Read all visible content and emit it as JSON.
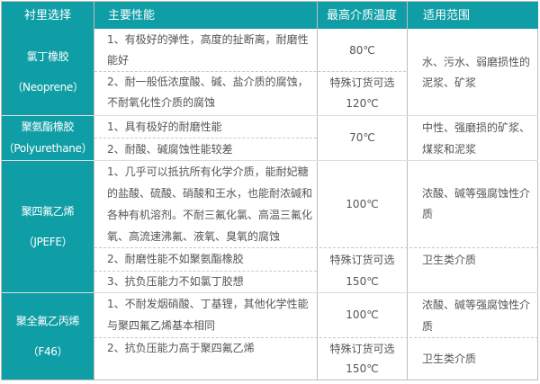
{
  "header": [
    "衬里选择",
    "主要性能",
    "最高介质温度",
    "适用范围"
  ],
  "colors": {
    "accent": "#109ea6",
    "border": "#bdbdbd",
    "text": "#555555"
  },
  "rows": [
    {
      "material": [
        "氯丁橡胶",
        "（Neoprene）"
      ],
      "properties": [
        "1、有极好的弹性，高度的扯断离，耐磨性能好",
        "2、耐一般低浓度酸、碱、盐介质的腐蚀，不耐氧化性介质的腐蚀"
      ],
      "temps": [
        "80℃",
        "特殊订货可选",
        "120℃"
      ],
      "usage": [
        "水、污水、弱磨损性的泥浆、矿浆"
      ]
    },
    {
      "material": [
        "聚氨酯橡胶",
        "（Polyurethane）"
      ],
      "properties": [
        "1、具有极好的耐磨性能",
        "2、耐酸、碱腐蚀性能较差"
      ],
      "temps": [
        "70℃"
      ],
      "usage": [
        "中性、强磨损的矿浆、煤浆和泥浆"
      ]
    },
    {
      "material": [
        "聚四氟乙烯",
        "（JPEFE）"
      ],
      "properties": [
        "1、几乎可以抵抗所有化学介质，能耐妃糖的盐酸、硫酸、硝酸和王水，也能耐浓碱和各种有机溶剂。不耐三氟化氯、高温三氟化氧、高流速沸氟、液氧、臭氧的腐蚀",
        "2、耐磨性能不如聚氨酯橡胶",
        "3、抗负压能力不如氯丁胶想"
      ],
      "temps": [
        "100℃",
        "特殊订货可选",
        "150℃"
      ],
      "usage": [
        "浓酸、碱等强腐蚀性介质",
        "卫生类介质"
      ]
    },
    {
      "material": [
        "聚全氟乙丙烯",
        "（F46）"
      ],
      "properties": [
        "1、不耐发烟硝酸、丁基锂，其他化学性能与聚四氟乙烯基本相同",
        "2、抗负压能力高于聚四氟乙烯"
      ],
      "temps": [
        "100℃",
        "特殊订货可选",
        "150℃"
      ],
      "usage": [
        "浓酸、碱等强腐蚀性介质",
        "卫生类介质"
      ]
    }
  ]
}
